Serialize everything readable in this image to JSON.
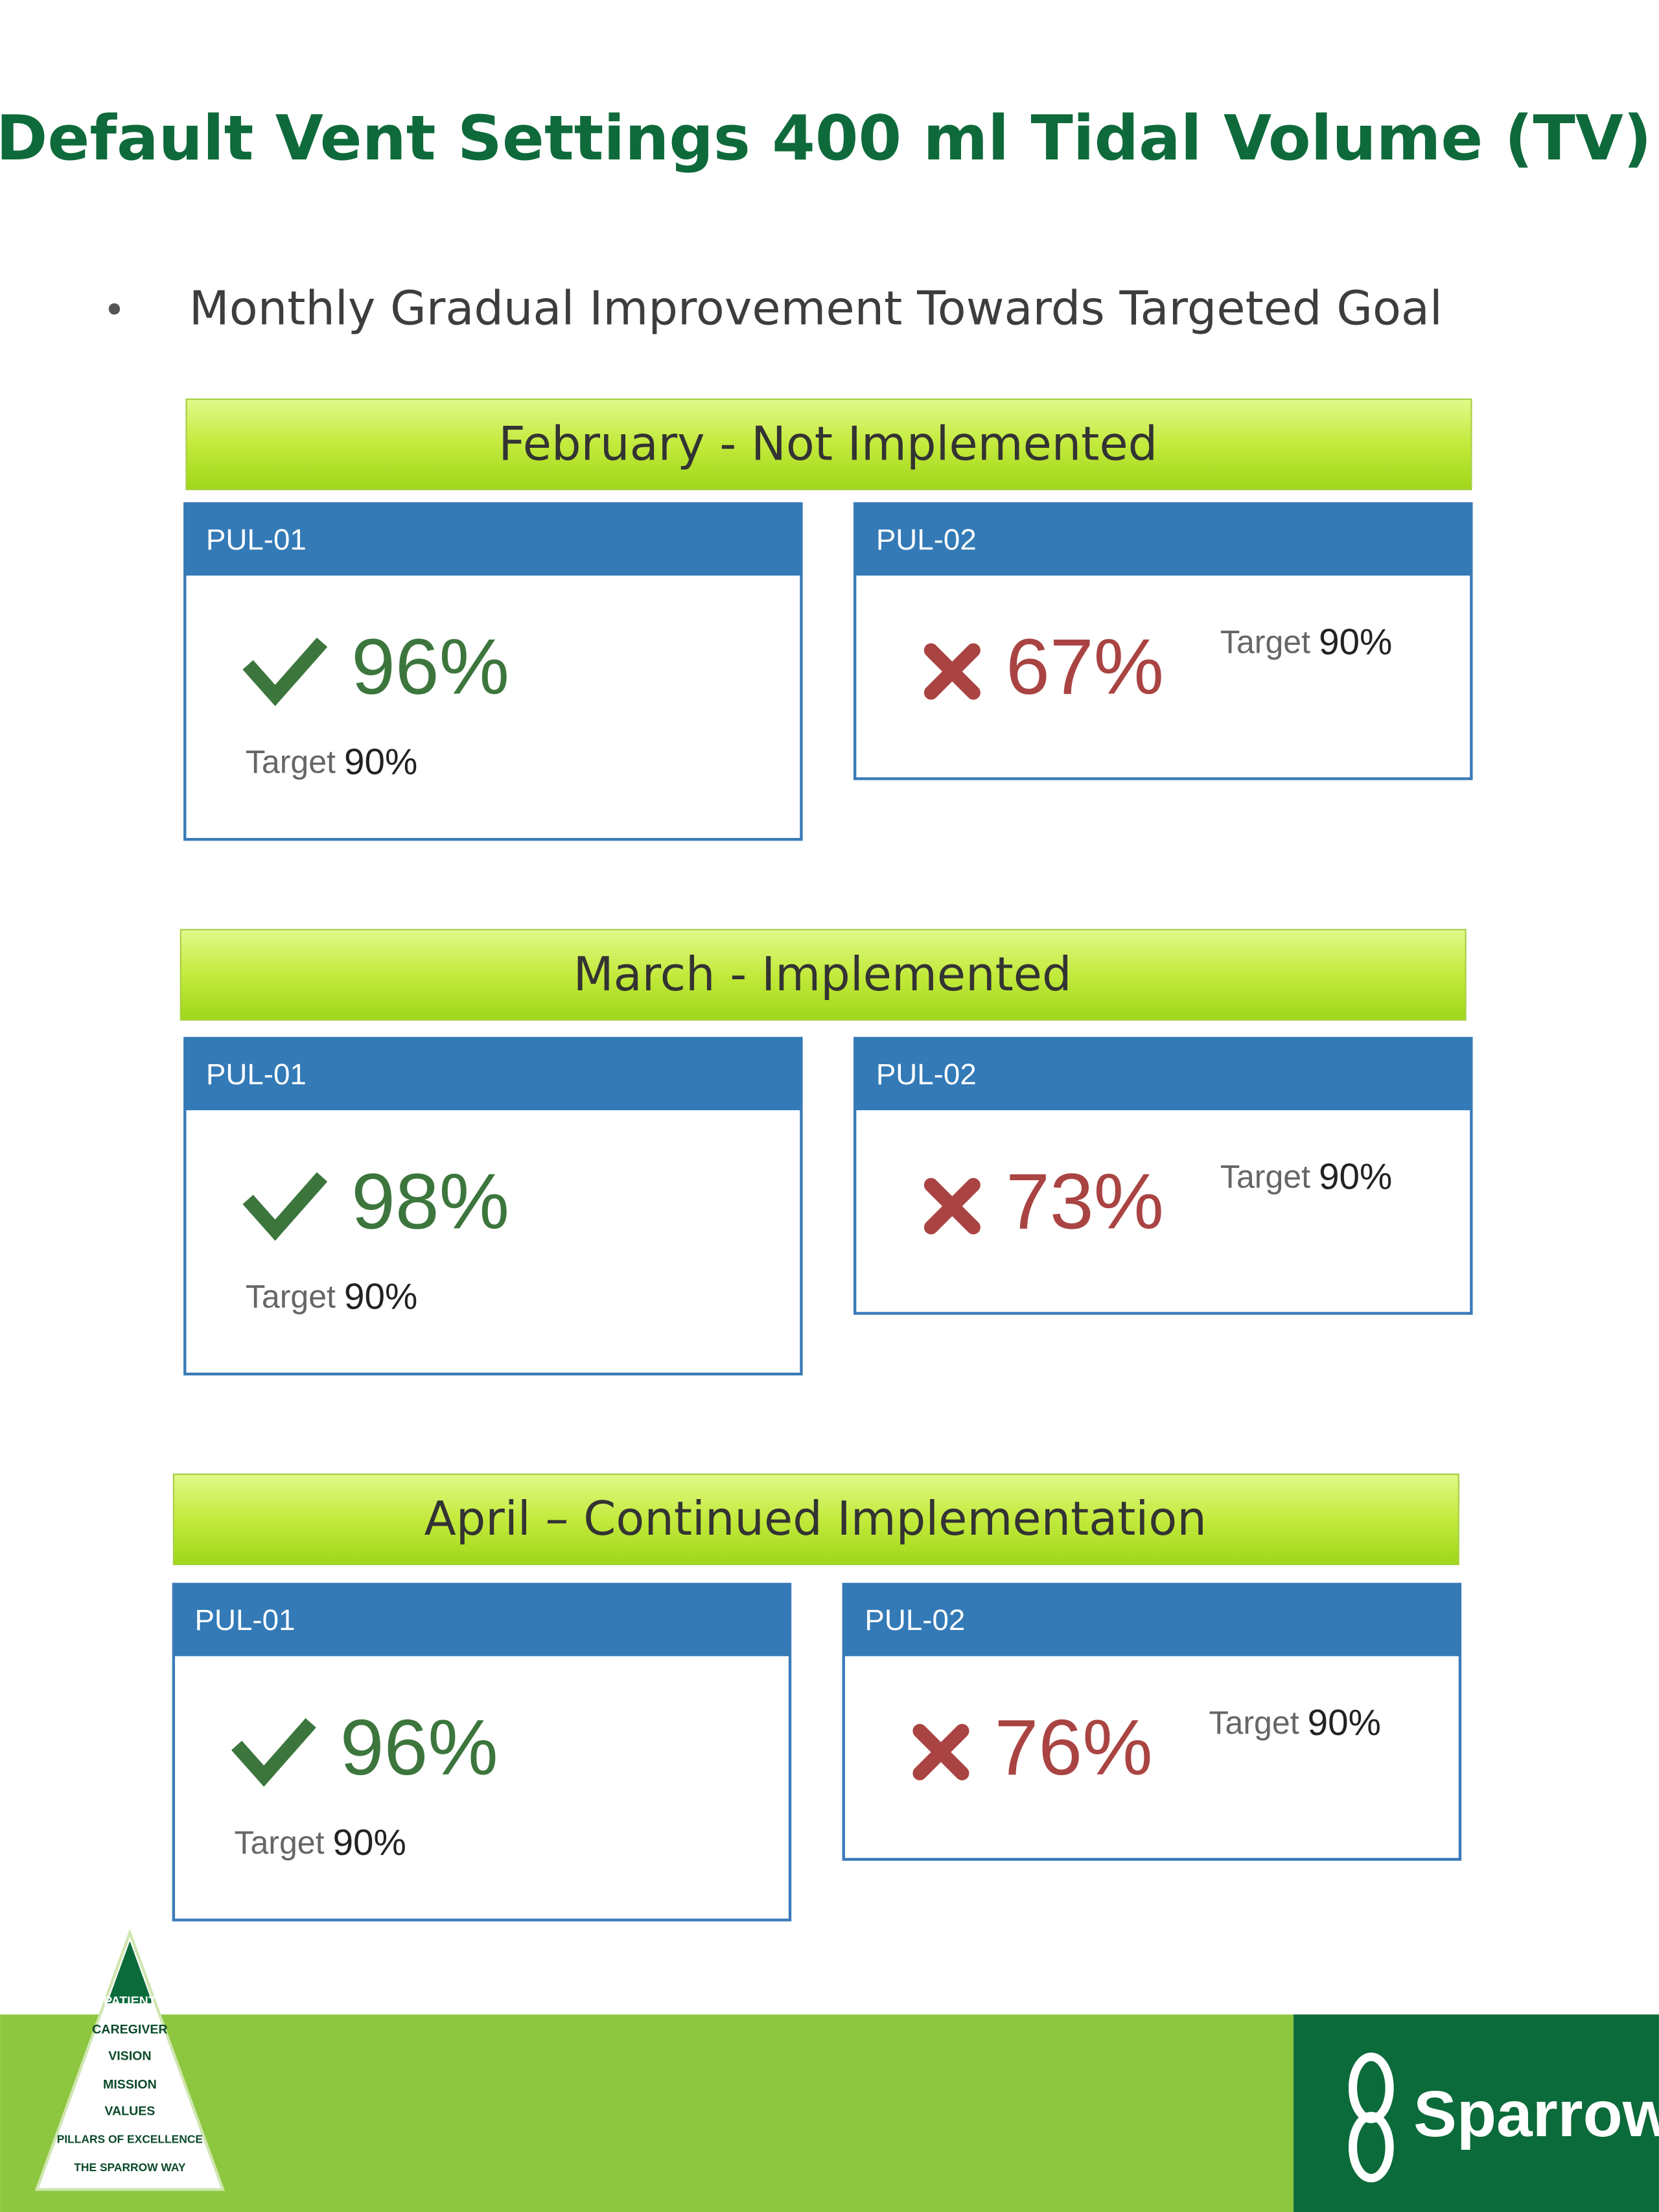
{
  "header": {
    "title": "Default Vent Settings 400 ml Tidal Volume (TV)"
  },
  "bullets": [
    "Monthly Gradual Improvement Towards Targeted Goal"
  ],
  "sections": [
    {
      "heading": "February - Not Implemented",
      "cards": [
        {
          "label": "PUL-01",
          "status": "met",
          "value": "96%",
          "target_label": "Target",
          "target": "90%"
        },
        {
          "label": "PUL-02",
          "status": "missed",
          "value": "67%",
          "target_label": "Target",
          "target": "90%"
        }
      ]
    },
    {
      "heading": "March - Implemented",
      "cards": [
        {
          "label": "PUL-01",
          "status": "met",
          "value": "98%",
          "target_label": "Target",
          "target": "90%"
        },
        {
          "label": "PUL-02",
          "status": "missed",
          "value": "73%",
          "target_label": "Target",
          "target": "90%"
        }
      ]
    },
    {
      "heading": "April – Continued Implementation",
      "cards": [
        {
          "label": "PUL-01",
          "status": "met",
          "value": "96%",
          "target_label": "Target",
          "target": "90%"
        },
        {
          "label": "PUL-02",
          "status": "missed",
          "value": "76%",
          "target_label": "Target",
          "target": "90%"
        }
      ]
    }
  ],
  "footer": {
    "pyramid": [
      "PATIENT",
      "CAREGIVER",
      "VISION",
      "MISSION",
      "VALUES",
      "PILLARS OF EXCELLENCE",
      "THE SPARROW WAY"
    ],
    "brand": "Sparrow"
  }
}
